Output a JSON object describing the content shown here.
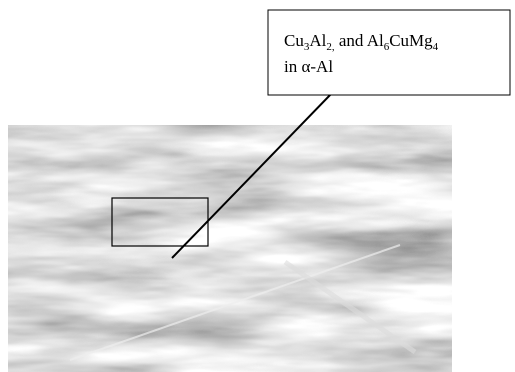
{
  "annotation": {
    "line1": [
      "Cu",
      "3",
      "Al",
      "2,",
      " and Al",
      "6",
      "CuMg",
      "4"
    ],
    "line2": "in α-Al"
  }
}
